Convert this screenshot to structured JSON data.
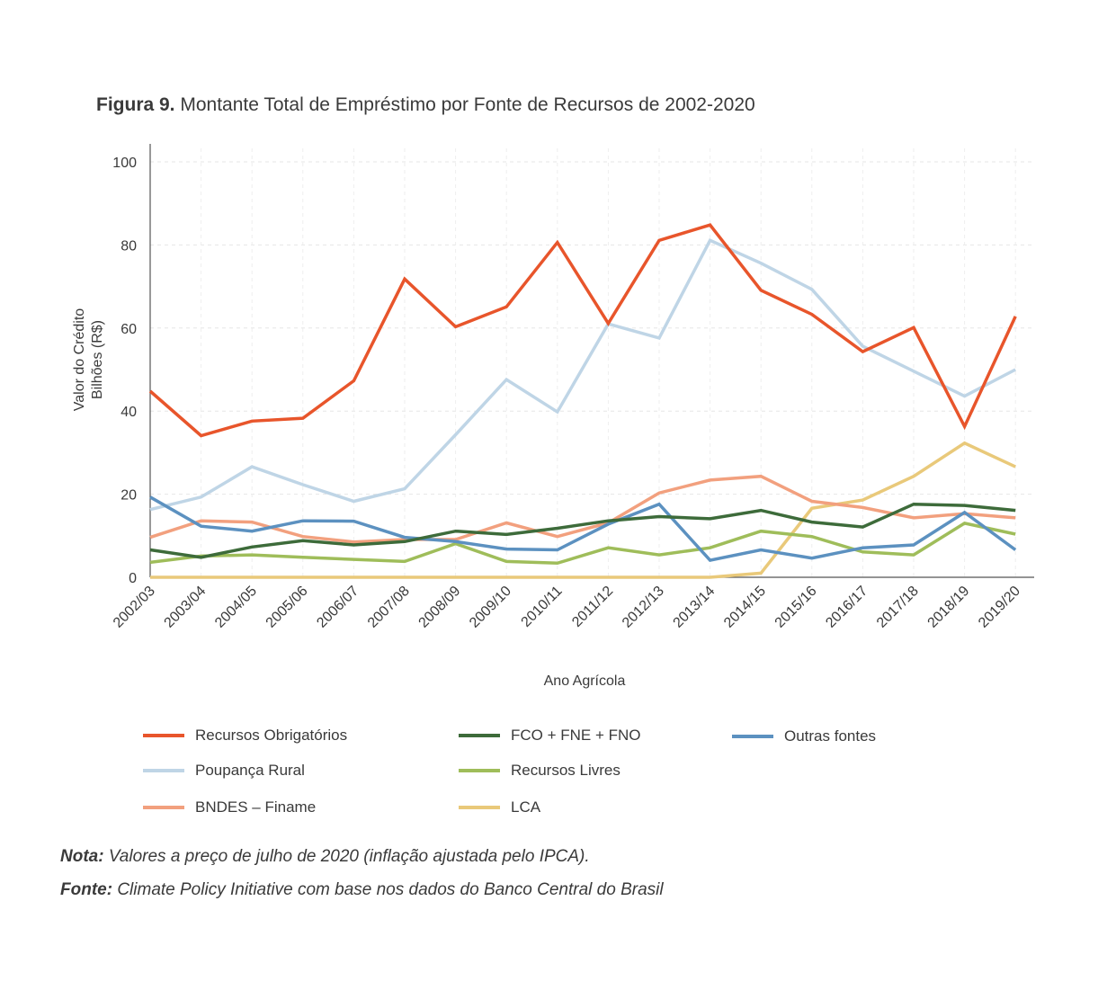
{
  "title_prefix": "Figura 9.",
  "title_text": " Montante Total de Empréstimo por Fonte de Recursos de 2002-2020",
  "note_label": "Nota:",
  "note_text": " Valores a preço de julho de 2020 (inflação ajustada pelo IPCA).",
  "source_label": "Fonte:",
  "source_text": " Climate Policy Initiative com base nos dados do Banco Central do Brasil",
  "chart_data": {
    "type": "line",
    "xlabel": "Ano Agrícola",
    "ylabel_line1": "Valor do Crédito",
    "ylabel_line2": "Bilhões (R$)",
    "ylim": [
      0,
      100
    ],
    "yticks": [
      0,
      20,
      40,
      60,
      80,
      100
    ],
    "grid": true,
    "legend_position": "bottom",
    "categories": [
      "2002/03",
      "2003/04",
      "2004/05",
      "2005/06",
      "2006/07",
      "2007/08",
      "2008/09",
      "2009/10",
      "2010/11",
      "2011/12",
      "2012/13",
      "2013/14",
      "2014/15",
      "2015/16",
      "2016/17",
      "2017/18",
      "2018/19",
      "2019/20"
    ],
    "series": [
      {
        "name": "Poupança Rural",
        "color": "#bfd5e6",
        "values": [
          16.3,
          19.3,
          26.6,
          22.3,
          18.3,
          21.3,
          34.3,
          47.6,
          39.8,
          61.0,
          57.6,
          81.1,
          75.6,
          69.3,
          55.6,
          49.6,
          43.6,
          50.0
        ]
      },
      {
        "name": "LCA",
        "color": "#e9c97a",
        "values": [
          0,
          0,
          0,
          0,
          0,
          0,
          0,
          0,
          0,
          0,
          0,
          0,
          1.0,
          16.6,
          18.6,
          24.3,
          32.3,
          26.6
        ]
      },
      {
        "name": "Recursos Livres",
        "color": "#9fbd5a",
        "values": [
          3.6,
          5.1,
          5.4,
          4.8,
          4.3,
          3.8,
          8.1,
          3.8,
          3.4,
          7.1,
          5.4,
          7.1,
          11.1,
          9.8,
          6.1,
          5.4,
          13.0,
          10.4
        ]
      },
      {
        "name": "BNDES – Finame",
        "color": "#f2a07e",
        "values": [
          9.6,
          13.6,
          13.3,
          9.8,
          8.5,
          9.1,
          9.1,
          13.1,
          9.8,
          13.1,
          20.3,
          23.4,
          24.3,
          18.3,
          16.8,
          14.3,
          15.3,
          14.3
        ]
      },
      {
        "name": "Outras fontes",
        "color": "#5c91c0",
        "values": [
          19.3,
          12.3,
          11.1,
          13.6,
          13.5,
          9.6,
          8.6,
          6.8,
          6.6,
          12.8,
          17.6,
          4.1,
          6.6,
          4.6,
          7.1,
          7.8,
          15.6,
          6.6
        ]
      },
      {
        "name": "FCO + FNE + FNO",
        "color": "#3d6b3a",
        "values": [
          6.6,
          4.8,
          7.3,
          8.8,
          7.8,
          8.6,
          11.1,
          10.3,
          11.8,
          13.6,
          14.6,
          14.1,
          16.1,
          13.3,
          12.1,
          17.6,
          17.3,
          16.1
        ]
      },
      {
        "name": "Recursos Obrigatórios",
        "color": "#e8552b",
        "values": [
          44.8,
          34.1,
          37.6,
          38.3,
          47.3,
          71.8,
          60.3,
          65.1,
          80.6,
          61.1,
          81.1,
          84.8,
          69.1,
          63.3,
          54.3,
          60.1,
          36.3,
          62.8
        ]
      }
    ]
  },
  "legend": [
    {
      "name": "Recursos Obrigatórios",
      "color": "#e8552b"
    },
    {
      "name": "FCO + FNE + FNO",
      "color": "#3d6b3a"
    },
    {
      "name": "Outras fontes",
      "color": "#5c91c0"
    },
    {
      "name": "Poupança Rural",
      "color": "#bfd5e6"
    },
    {
      "name": "Recursos Livres",
      "color": "#9fbd5a"
    },
    {
      "name": "BNDES – Finame",
      "color": "#f2a07e"
    },
    {
      "name": "LCA",
      "color": "#e9c97a"
    }
  ]
}
